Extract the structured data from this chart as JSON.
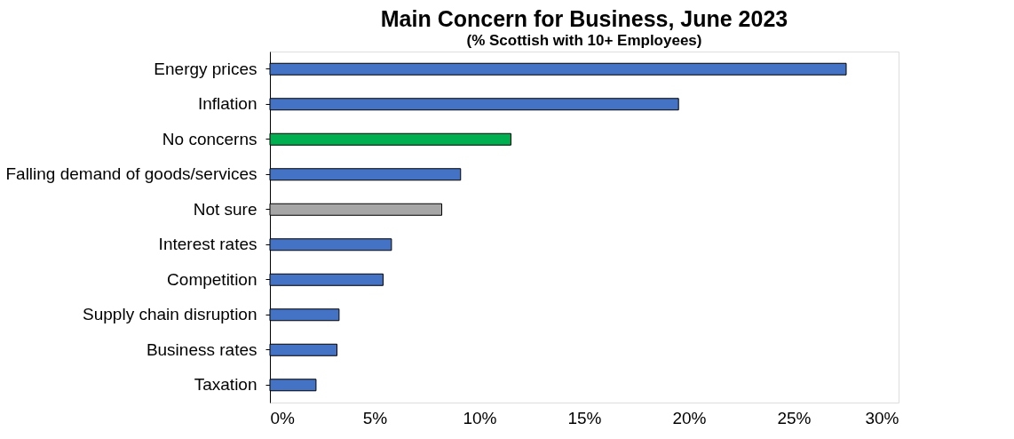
{
  "chart_data": {
    "type": "bar",
    "orientation": "horizontal",
    "title": "Main Concern for Business, June 2023",
    "subtitle": "(% Scottish with 10+ Employees)",
    "categories": [
      "Energy prices",
      "Inflation",
      "No concerns",
      "Falling demand of goods/services",
      "Not sure",
      "Interest rates",
      "Competition",
      "Supply chain disruption",
      "Business rates",
      "Taxation"
    ],
    "values": [
      27.5,
      19.5,
      11.5,
      9.1,
      8.2,
      5.8,
      5.4,
      3.3,
      3.2,
      2.2
    ],
    "colors": [
      "#4472c4",
      "#4472c4",
      "#00b050",
      "#4472c4",
      "#a6a6a6",
      "#4472c4",
      "#4472c4",
      "#4472c4",
      "#4472c4",
      "#4472c4"
    ],
    "xlim": [
      0,
      30
    ],
    "xticks": [
      {
        "value": 0,
        "label": "0%"
      },
      {
        "value": 5,
        "label": "5%"
      },
      {
        "value": 10,
        "label": "10%"
      },
      {
        "value": 15,
        "label": "15%"
      },
      {
        "value": 20,
        "label": "20%"
      },
      {
        "value": 25,
        "label": "25%"
      },
      {
        "value": 30,
        "label": "30%"
      }
    ],
    "grid": false
  }
}
